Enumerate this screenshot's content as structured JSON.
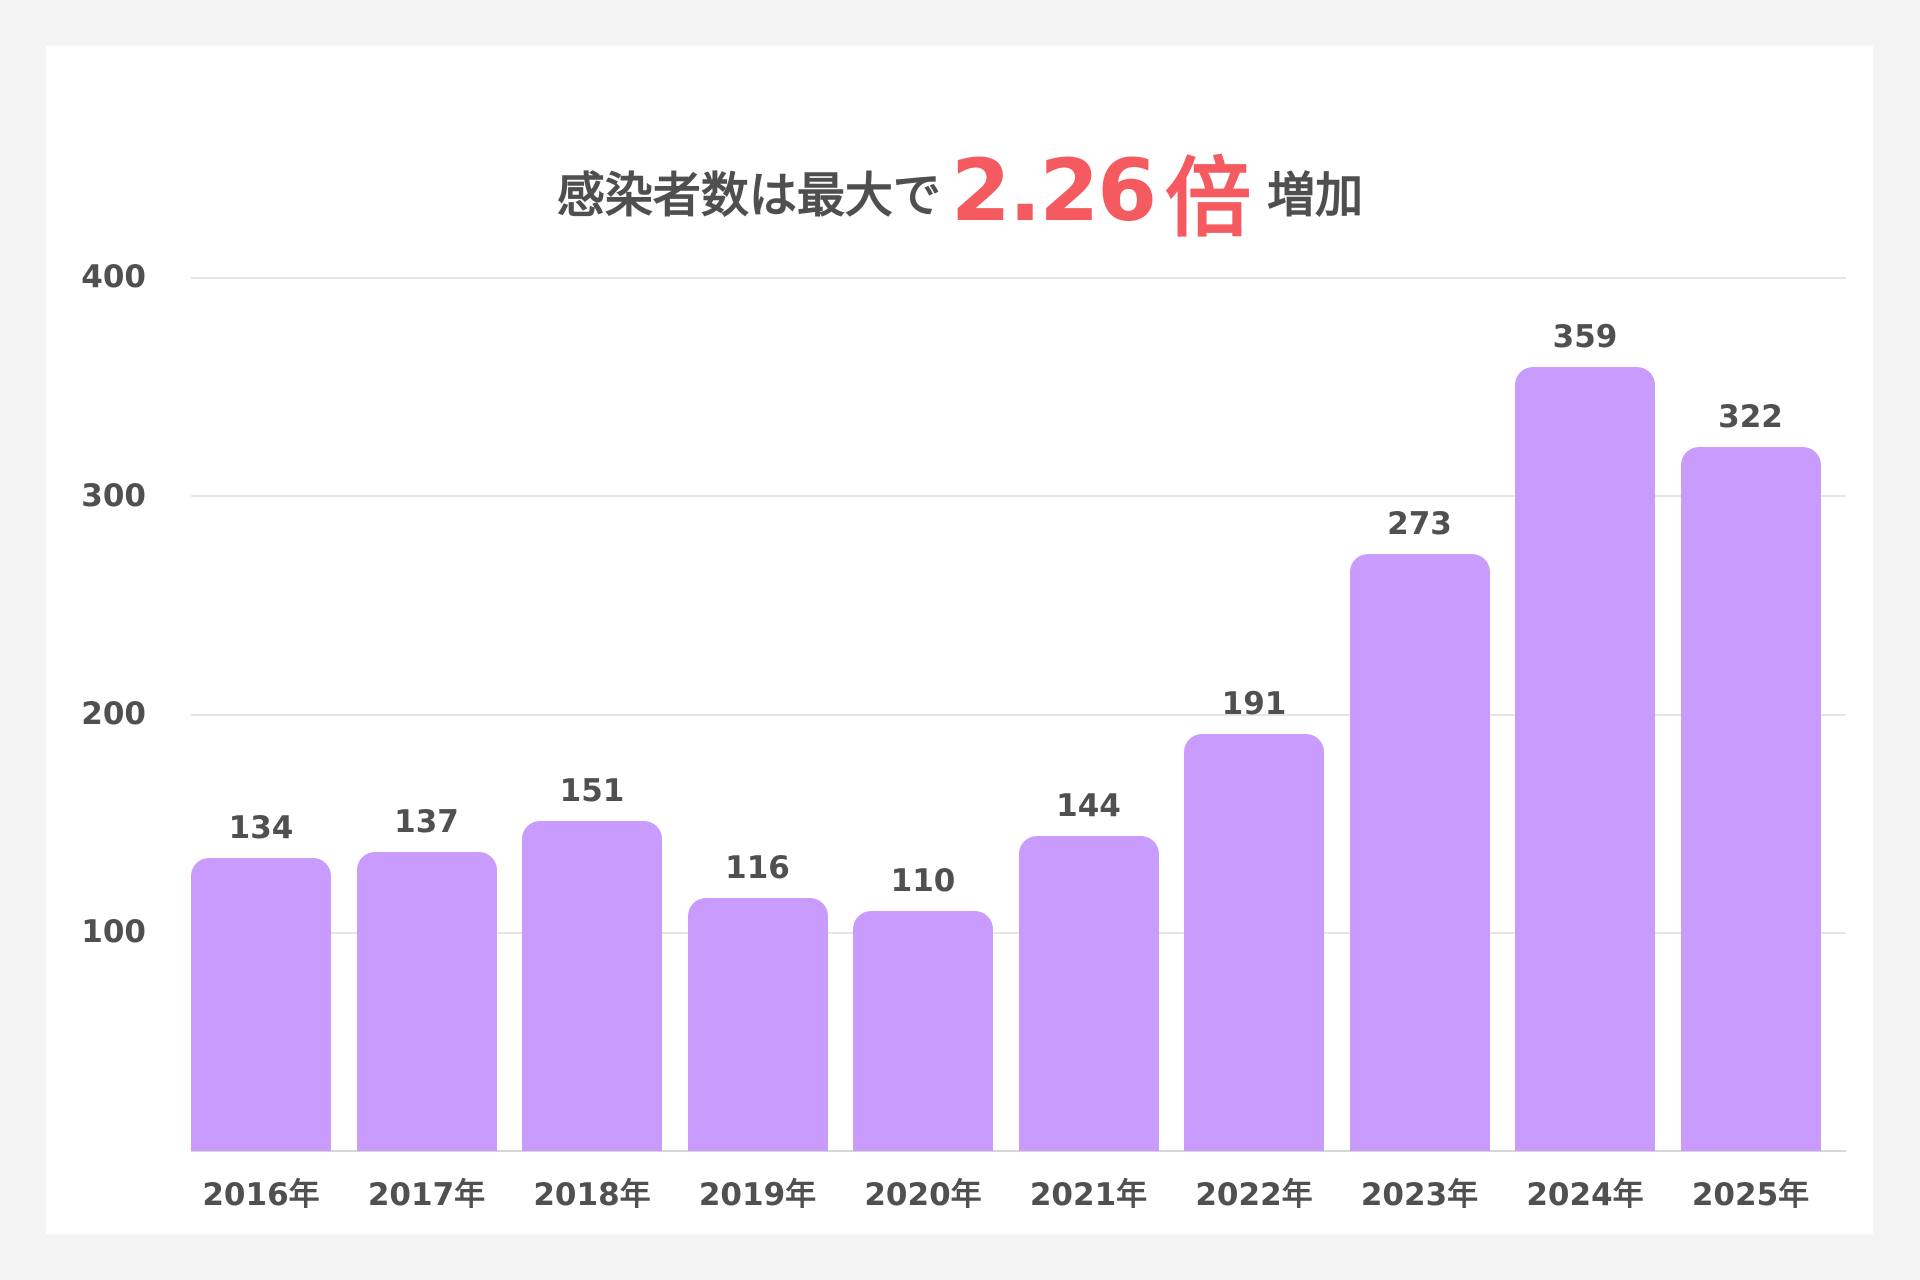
{
  "title": {
    "prefix": "感染者数は最大で",
    "highlight_number": "2.26",
    "highlight_unit": "倍",
    "suffix": "増加",
    "highlight_color": "#f45a5f"
  },
  "colors": {
    "bar": "#c89bfc",
    "text": "#505050",
    "background": "#f4f4f4",
    "panel": "#ffffff",
    "grid": "#e6e6e6"
  },
  "y_axis": {
    "ticks": [
      "400",
      "300",
      "200",
      "100"
    ]
  },
  "x_axis": {
    "labels": [
      "2016年",
      "2017年",
      "2018年",
      "2019年",
      "2020年",
      "2021年",
      "2022年",
      "2023年",
      "2024年",
      "2025年"
    ]
  },
  "value_labels": [
    "134",
    "137",
    "151",
    "116",
    "110",
    "144",
    "191",
    "273",
    "359",
    "322"
  ],
  "chart_data": {
    "type": "bar",
    "title": "感染者数は最大で2.26倍増加",
    "categories": [
      "2016年",
      "2017年",
      "2018年",
      "2019年",
      "2020年",
      "2021年",
      "2022年",
      "2023年",
      "2024年",
      "2025年"
    ],
    "values": [
      134,
      137,
      151,
      116,
      110,
      144,
      191,
      273,
      359,
      322
    ],
    "xlabel": "",
    "ylabel": "",
    "ylim": [
      0,
      400
    ],
    "yticks": [
      100,
      200,
      300,
      400
    ],
    "grid": true,
    "legend": null,
    "data_labels": true,
    "bar_color": "#c89bfc"
  }
}
